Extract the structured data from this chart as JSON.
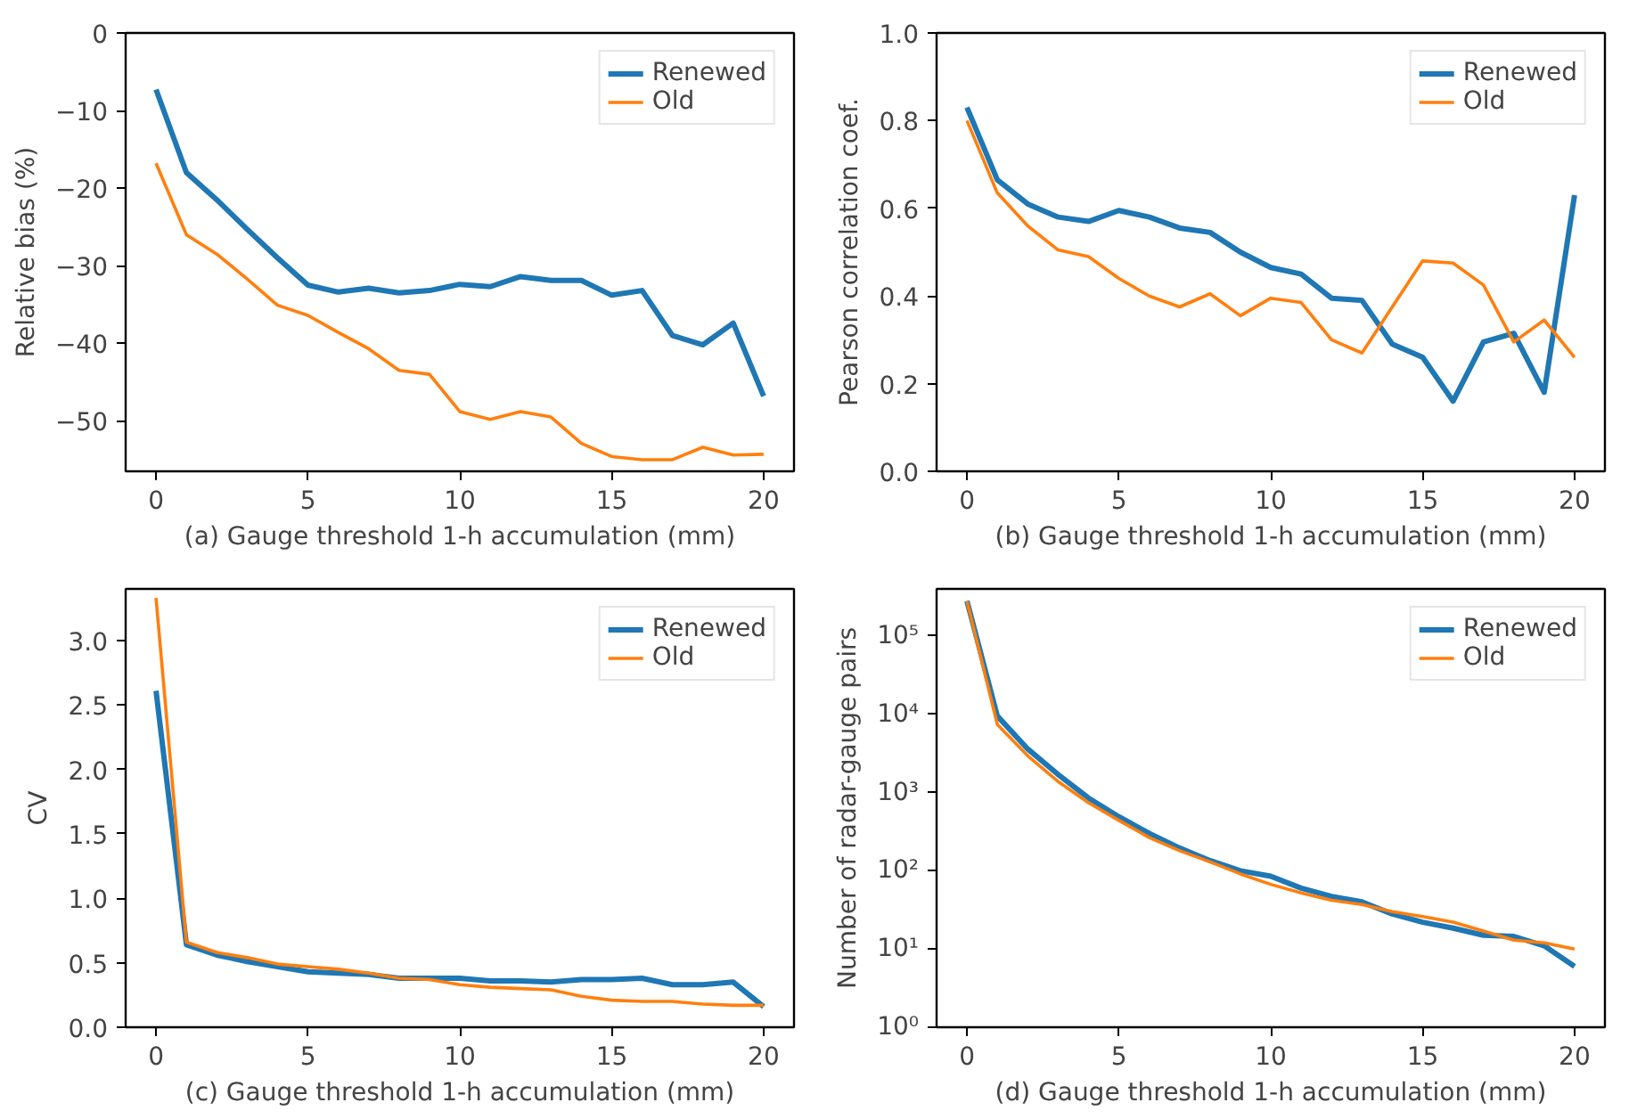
{
  "chart_data": [
    {
      "type": "line",
      "xlabel": "(a) Gauge threshold 1-h accumulation (mm)",
      "ylabel": "Relative bias (%)",
      "x": [
        0,
        1,
        2,
        3,
        4,
        5,
        6,
        7,
        8,
        9,
        10,
        11,
        12,
        13,
        14,
        15,
        16,
        17,
        18,
        19,
        20
      ],
      "xlim": [
        -1,
        21
      ],
      "xticks": [
        0,
        5,
        10,
        15,
        20
      ],
      "ylim": [
        -56.5,
        0
      ],
      "yticks": [
        -50,
        -40,
        -30,
        -20,
        -10,
        0
      ],
      "legend": "top right",
      "grid": false,
      "series": [
        {
          "name": "Renewed",
          "color": "#1f77b4",
          "values": [
            -7.3,
            -18,
            -21.5,
            -25.3,
            -29,
            -32.5,
            -33.4,
            -32.9,
            -33.5,
            -33.2,
            -32.4,
            -32.7,
            -31.4,
            -31.9,
            -31.9,
            -33.8,
            -33.2,
            -39,
            -40.2,
            -37.4,
            -46.8
          ]
        },
        {
          "name": "Old",
          "color": "#ff7f0e",
          "values": [
            -16.8,
            -26,
            -28.5,
            -31.7,
            -35.1,
            -36.4,
            -38.6,
            -40.7,
            -43.5,
            -44,
            -48.8,
            -49.8,
            -48.8,
            -49.5,
            -52.9,
            -54.6,
            -55,
            -55,
            -53.4,
            -54.4,
            -54.3
          ]
        }
      ]
    },
    {
      "type": "line",
      "xlabel": "(b) Gauge threshold 1-h accumulation (mm)",
      "ylabel": "Pearson correlation coef.",
      "x": [
        0,
        1,
        2,
        3,
        4,
        5,
        6,
        7,
        8,
        9,
        10,
        11,
        12,
        13,
        14,
        15,
        16,
        17,
        18,
        19,
        20
      ],
      "xlim": [
        -1,
        21
      ],
      "xticks": [
        0,
        5,
        10,
        15,
        20
      ],
      "ylim": [
        0,
        1
      ],
      "yticks": [
        {
          "value": 0,
          "label": "0.0"
        },
        0.2,
        0.4,
        0.6,
        0.8,
        {
          "value": 1,
          "label": "1.0"
        }
      ],
      "legend": "top right",
      "grid": false,
      "series": [
        {
          "name": "Renewed",
          "color": "#1f77b4",
          "values": [
            0.83,
            0.665,
            0.61,
            0.58,
            0.57,
            0.595,
            0.58,
            0.555,
            0.545,
            0.5,
            0.465,
            0.45,
            0.395,
            0.39,
            0.29,
            0.26,
            0.16,
            0.295,
            0.315,
            0.18,
            0.63
          ]
        },
        {
          "name": "Old",
          "color": "#ff7f0e",
          "values": [
            0.8,
            0.635,
            0.56,
            0.505,
            0.49,
            0.44,
            0.4,
            0.375,
            0.405,
            0.355,
            0.395,
            0.385,
            0.3,
            0.27,
            0.375,
            0.48,
            0.475,
            0.425,
            0.295,
            0.345,
            0.26
          ]
        }
      ]
    },
    {
      "type": "line",
      "xlabel": "(c) Gauge threshold 1-h accumulation (mm)",
      "ylabel": "CV",
      "x": [
        0,
        1,
        2,
        3,
        4,
        5,
        6,
        7,
        8,
        9,
        10,
        11,
        12,
        13,
        14,
        15,
        16,
        17,
        18,
        19,
        20
      ],
      "xlim": [
        -1,
        21
      ],
      "xticks": [
        0,
        5,
        10,
        15,
        20
      ],
      "ylim": [
        0,
        3.4
      ],
      "yticks": [
        {
          "value": 0,
          "label": "0.0"
        },
        0.5,
        {
          "value": 1,
          "label": "1.0"
        },
        1.5,
        {
          "value": 2,
          "label": "2.0"
        },
        2.5,
        {
          "value": 3,
          "label": "3.0"
        }
      ],
      "legend": "top right",
      "grid": false,
      "series": [
        {
          "name": "Renewed",
          "color": "#1f77b4",
          "values": [
            2.61,
            0.64,
            0.56,
            0.51,
            0.47,
            0.43,
            0.42,
            0.41,
            0.38,
            0.38,
            0.38,
            0.36,
            0.36,
            0.35,
            0.37,
            0.37,
            0.38,
            0.33,
            0.33,
            0.35,
            0.16
          ]
        },
        {
          "name": "Old",
          "color": "#ff7f0e",
          "values": [
            3.33,
            0.66,
            0.58,
            0.54,
            0.49,
            0.47,
            0.45,
            0.42,
            0.38,
            0.37,
            0.33,
            0.31,
            0.3,
            0.29,
            0.24,
            0.21,
            0.2,
            0.2,
            0.18,
            0.17,
            0.17
          ]
        }
      ]
    },
    {
      "type": "line",
      "xlabel": "(d) Gauge threshold 1-h accumulation (mm)",
      "ylabel": "Number of radar-gauge pairs",
      "x": [
        0,
        1,
        2,
        3,
        4,
        5,
        6,
        7,
        8,
        9,
        10,
        11,
        12,
        13,
        14,
        15,
        16,
        17,
        18,
        19,
        20
      ],
      "xlim": [
        -1,
        21
      ],
      "xticks": [
        0,
        5,
        10,
        15,
        20
      ],
      "log": "y",
      "ylim": [
        1,
        400000
      ],
      "yticks": [
        {
          "value": 1,
          "label": "10⁰"
        },
        {
          "value": 10,
          "label": "10¹"
        },
        {
          "value": 100,
          "label": "10²"
        },
        {
          "value": 1000,
          "label": "10³"
        },
        {
          "value": 10000,
          "label": "10⁴"
        },
        {
          "value": 100000,
          "label": "10⁵"
        }
      ],
      "legend": "top right",
      "grid": false,
      "series": [
        {
          "name": "Renewed",
          "color": "#1f77b4",
          "values": [
            280000,
            9500,
            3600,
            1700,
            850,
            490,
            300,
            195,
            135,
            100,
            85,
            60,
            47,
            40,
            28,
            22,
            18.5,
            15,
            14.5,
            11,
            6
          ]
        },
        {
          "name": "Old",
          "color": "#ff7f0e",
          "values": [
            280000,
            7400,
            2950,
            1380,
            740,
            440,
            265,
            180,
            130,
            91,
            67,
            52,
            42,
            37,
            30,
            26,
            22,
            17,
            13,
            12,
            10
          ]
        }
      ]
    }
  ]
}
